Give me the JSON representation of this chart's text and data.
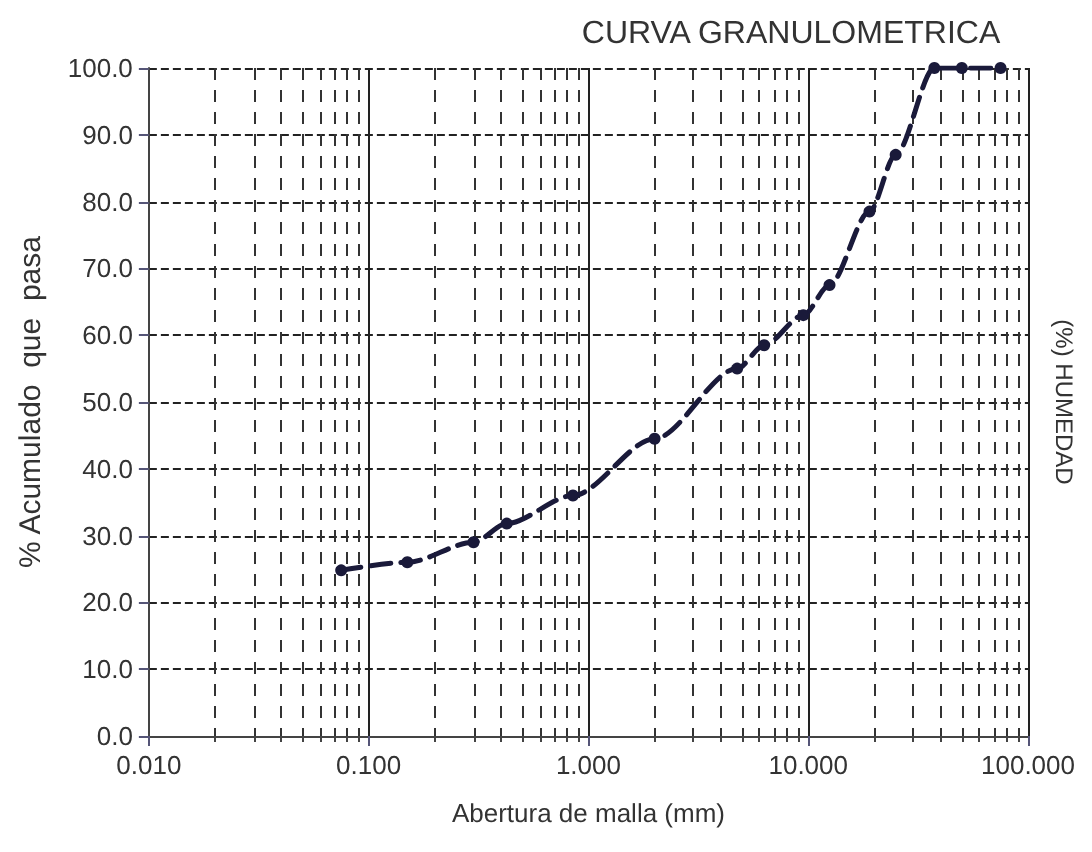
{
  "chart_data": {
    "type": "line",
    "title": "CURVA GRANULOMETRICA",
    "xlabel": "Abertura de malla (mm)",
    "ylabel": "% Acumulado  que  pasa",
    "y2label": "(%) HUMEDAD",
    "log": "x",
    "grid": true,
    "marker": "circle",
    "line_style": "dashed",
    "x": [
      0.075,
      0.15,
      0.3,
      0.425,
      0.85,
      2.0,
      4.75,
      6.3,
      9.5,
      12.5,
      19,
      25,
      37.5,
      50,
      75
    ],
    "series": [
      {
        "color": "#1a1a3a",
        "values": [
          24.8,
          26,
          29,
          31.8,
          36,
          44.5,
          55,
          58.5,
          63,
          67.5,
          78.5,
          87,
          100,
          100,
          100
        ]
      }
    ],
    "xlim": [
      0.01,
      100
    ],
    "xticks": [
      {
        "value": 0.01,
        "label": "0.010"
      },
      {
        "value": 0.1,
        "label": "0.100"
      },
      {
        "value": 1,
        "label": "1.000"
      },
      {
        "value": 10,
        "label": "10.000"
      },
      {
        "value": 100,
        "label": "100.000"
      }
    ],
    "ylim": [
      0,
      100
    ],
    "yticks": [
      {
        "value": 0,
        "label": "0.0"
      },
      {
        "value": 10,
        "label": "10.0"
      },
      {
        "value": 20,
        "label": "20.0"
      },
      {
        "value": 30,
        "label": "30.0"
      },
      {
        "value": 40,
        "label": "40.0"
      },
      {
        "value": 50,
        "label": "50.0"
      },
      {
        "value": 60,
        "label": "60.0"
      },
      {
        "value": 70,
        "label": "70.0"
      },
      {
        "value": 80,
        "label": "80.0"
      },
      {
        "value": 90,
        "label": "90.0"
      },
      {
        "value": 100,
        "label": "100.0"
      }
    ]
  }
}
